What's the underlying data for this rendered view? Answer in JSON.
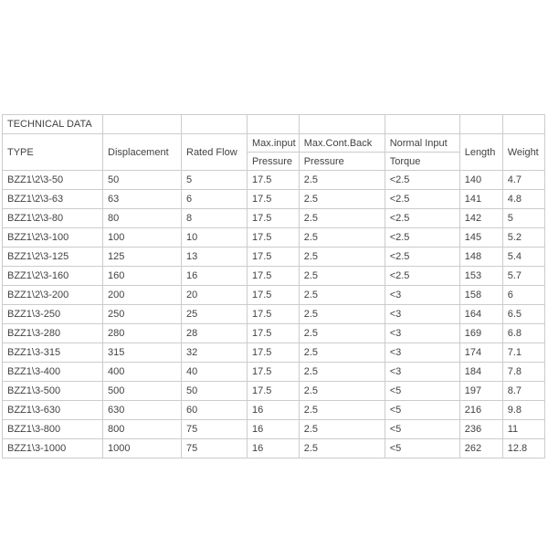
{
  "page": {
    "background": "#ffffff"
  },
  "colors": {
    "border": "#cccccc",
    "text": "#424242"
  },
  "table": {
    "section_title": "TECHNICAL DATA",
    "columns": [
      {
        "label": "TYPE",
        "sub": ""
      },
      {
        "label": "Displacement",
        "sub": ""
      },
      {
        "label": "Rated Flow",
        "sub": ""
      },
      {
        "label": "Max.input",
        "sub": "Pressure"
      },
      {
        "label": "Max.Cont.Back",
        "sub": "Pressure"
      },
      {
        "label": "Normal Input",
        "sub": "Torque"
      },
      {
        "label": "Length",
        "sub": ""
      },
      {
        "label": "Weight",
        "sub": ""
      }
    ],
    "rows": [
      [
        "BZZ1\\2\\3-50",
        "50",
        "5",
        "17.5",
        "2.5",
        "<2.5",
        "140",
        "4.7"
      ],
      [
        "BZZ1\\2\\3-63",
        "63",
        "6",
        "17.5",
        "2.5",
        "<2.5",
        "141",
        "4.8"
      ],
      [
        "BZZ1\\2\\3-80",
        "80",
        "8",
        "17.5",
        "2.5",
        "<2.5",
        "142",
        "5"
      ],
      [
        "BZZ1\\2\\3-100",
        "100",
        "10",
        "17.5",
        "2.5",
        "<2.5",
        "145",
        "5.2"
      ],
      [
        "BZZ1\\2\\3-125",
        "125",
        "13",
        "17.5",
        "2.5",
        "<2.5",
        "148",
        "5.4"
      ],
      [
        "BZZ1\\2\\3-160",
        "160",
        "16",
        "17.5",
        "2.5",
        "<2.5",
        "153",
        "5.7"
      ],
      [
        "BZZ1\\2\\3-200",
        "200",
        "20",
        "17.5",
        "2.5",
        "<3",
        "158",
        "6"
      ],
      [
        "BZZ1\\3-250",
        "250",
        "25",
        "17.5",
        "2.5",
        "<3",
        "164",
        "6.5"
      ],
      [
        "BZZ1\\3-280",
        "280",
        "28",
        "17.5",
        "2.5",
        "<3",
        "169",
        "6.8"
      ],
      [
        "BZZ1\\3-315",
        "315",
        "32",
        "17.5",
        "2.5",
        "<3",
        "174",
        "7.1"
      ],
      [
        "BZZ1\\3-400",
        "400",
        "40",
        "17.5",
        "2.5",
        "<3",
        "184",
        "7.8"
      ],
      [
        "BZZ1\\3-500",
        "500",
        "50",
        "17.5",
        "2.5",
        "<5",
        "197",
        "8.7"
      ],
      [
        "BZZ1\\3-630",
        "630",
        "60",
        "16",
        "2.5",
        "<5",
        "216",
        "9.8"
      ],
      [
        "BZZ1\\3-800",
        "800",
        "75",
        "16",
        "2.5",
        "<5",
        "236",
        "11"
      ],
      [
        "BZZ1\\3-1000",
        "1000",
        "75",
        "16",
        "2.5",
        "<5",
        "262",
        "12.8"
      ]
    ]
  }
}
